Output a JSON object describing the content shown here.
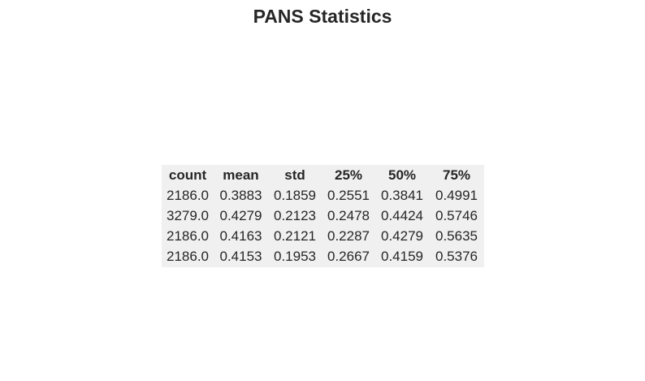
{
  "chart_data": {
    "type": "table",
    "title": "PANS Statistics",
    "columns": [
      "count",
      "mean",
      "std",
      "25%",
      "50%",
      "75%"
    ],
    "rows": [
      [
        "2186.0",
        "0.3883",
        "0.1859",
        "0.2551",
        "0.3841",
        "0.4991"
      ],
      [
        "3279.0",
        "0.4279",
        "0.2123",
        "0.2478",
        "0.4424",
        "0.5746"
      ],
      [
        "2186.0",
        "0.4163",
        "0.2121",
        "0.2287",
        "0.4279",
        "0.5635"
      ],
      [
        "2186.0",
        "0.4153",
        "0.1953",
        "0.2667",
        "0.4159",
        "0.5376"
      ]
    ],
    "colors": {
      "table_background": "#f0f0f0",
      "text": "#262626"
    }
  }
}
